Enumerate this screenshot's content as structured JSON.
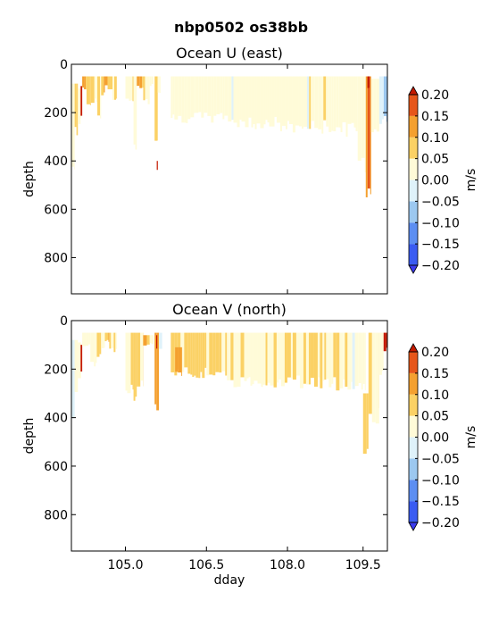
{
  "figure": {
    "suptitle": "nbp0502 os38bb"
  },
  "colors": {
    "neg_extreme": "#3b3bf0",
    "pos_extreme": "#c41a00",
    "frame": "#000000"
  },
  "colormap": {
    "bins": [
      {
        "lo": -0.2,
        "hi": -0.15,
        "color": "#3a5cf2"
      },
      {
        "lo": -0.15,
        "hi": -0.1,
        "color": "#5c8ef2"
      },
      {
        "lo": -0.1,
        "hi": -0.05,
        "color": "#9cc8f0"
      },
      {
        "lo": -0.05,
        "hi": 0.0,
        "color": "#dff2fa"
      },
      {
        "lo": 0.0,
        "hi": 0.05,
        "color": "#fffbd8"
      },
      {
        "lo": 0.05,
        "hi": 0.1,
        "color": "#fbd165"
      },
      {
        "lo": 0.1,
        "hi": 0.15,
        "color": "#f4a030"
      },
      {
        "lo": 0.15,
        "hi": 0.2,
        "color": "#e6561a"
      }
    ]
  },
  "chart_data": [
    {
      "type": "heatmap",
      "title": "Ocean U (east)",
      "xlabel": "",
      "ylabel": "depth",
      "ylim": [
        950,
        0
      ],
      "xlim": [
        104.6,
        110.45
      ],
      "yticks": [
        "0",
        "200",
        "400",
        "600",
        "800"
      ],
      "colorbar": {
        "label": "m/s",
        "ticks": [
          "0.20",
          "0.15",
          "0.10",
          "0.05",
          "0.00",
          "−0.05",
          "−0.10",
          "−0.15",
          "−0.20"
        ],
        "range": [
          -0.2,
          0.2
        ]
      },
      "segments": [
        {
          "x0": 104.6,
          "x1": 104.66,
          "d0": 80,
          "d1": 480,
          "level": 0.03
        },
        {
          "x0": 104.66,
          "x1": 104.72,
          "d0": 80,
          "d1": 310,
          "level": 0.06
        },
        {
          "x0": 104.72,
          "x1": 104.78,
          "d0": 100,
          "d1": 250,
          "level": 0.04
        },
        {
          "x0": 104.77,
          "x1": 104.8,
          "d0": 90,
          "d1": 230,
          "level": 0.2
        },
        {
          "x0": 104.8,
          "x1": 104.9,
          "d0": 50,
          "d1": 110,
          "level": 0.08
        },
        {
          "x0": 104.88,
          "x1": 104.96,
          "d0": 50,
          "d1": 180,
          "level": 0.07
        },
        {
          "x0": 104.96,
          "x1": 105.08,
          "d0": 50,
          "d1": 170,
          "level": 0.06
        },
        {
          "x0": 105.08,
          "x1": 105.15,
          "d0": 50,
          "d1": 230,
          "level": 0.05
        },
        {
          "x0": 105.15,
          "x1": 105.22,
          "d0": 50,
          "d1": 130,
          "level": 0.1
        },
        {
          "x0": 105.22,
          "x1": 105.27,
          "d0": 50,
          "d1": 90,
          "level": 0.12
        },
        {
          "x0": 105.27,
          "x1": 105.36,
          "d0": 50,
          "d1": 110,
          "level": 0.07
        },
        {
          "x0": 105.36,
          "x1": 105.44,
          "d0": 50,
          "d1": 170,
          "level": 0.05
        },
        {
          "x0": 105.6,
          "x1": 105.75,
          "d0": 50,
          "d1": 160,
          "level": 0.04
        },
        {
          "x0": 105.75,
          "x1": 105.81,
          "d0": 50,
          "d1": 360,
          "level": 0.02
        },
        {
          "x0": 105.81,
          "x1": 105.93,
          "d0": 50,
          "d1": 100,
          "level": 0.12
        },
        {
          "x0": 105.93,
          "x1": 106.05,
          "d0": 50,
          "d1": 170,
          "level": 0.06
        },
        {
          "x0": 106.05,
          "x1": 106.12,
          "d0": 50,
          "d1": 90,
          "level": 0.03
        },
        {
          "x0": 106.14,
          "x1": 106.2,
          "d0": 50,
          "d1": 320,
          "level": 0.09
        },
        {
          "x0": 106.18,
          "x1": 106.2,
          "d0": 400,
          "d1": 440,
          "level": 0.2
        },
        {
          "x0": 106.2,
          "x1": 106.25,
          "d0": 50,
          "d1": 120,
          "level": 0.04
        },
        {
          "x0": 106.44,
          "x1": 107.6,
          "d0": 50,
          "d1": 245,
          "level": 0.02
        },
        {
          "x0": 107.6,
          "x1": 108.4,
          "d0": 50,
          "d1": 270,
          "level": 0.03
        },
        {
          "x0": 108.4,
          "x1": 109.0,
          "d0": 50,
          "d1": 290,
          "level": 0.02
        },
        {
          "x0": 109.0,
          "x1": 109.55,
          "d0": 50,
          "d1": 290,
          "level": 0.04
        },
        {
          "x0": 109.55,
          "x1": 109.9,
          "d0": 50,
          "d1": 300,
          "level": 0.03
        },
        {
          "x0": 109.9,
          "x1": 110.05,
          "d0": 50,
          "d1": 460,
          "level": 0.03
        },
        {
          "x0": 110.05,
          "x1": 110.15,
          "d0": 50,
          "d1": 585,
          "level": 0.15
        },
        {
          "x0": 110.08,
          "x1": 110.12,
          "d0": 50,
          "d1": 100,
          "level": 0.2
        },
        {
          "x0": 110.15,
          "x1": 110.3,
          "d0": 60,
          "d1": 300,
          "level": 0.02
        },
        {
          "x0": 110.3,
          "x1": 110.45,
          "d0": 50,
          "d1": 260,
          "level": -0.04
        }
      ]
    },
    {
      "type": "heatmap",
      "title": "Ocean V (north)",
      "xlabel": "dday",
      "ylabel": "depth",
      "ylim": [
        950,
        0
      ],
      "xlim": [
        104.6,
        110.45
      ],
      "xticks": [
        {
          "value": 105.6,
          "label": "105.0"
        },
        {
          "value": 107.1,
          "label": "106.5"
        },
        {
          "value": 108.6,
          "label": "108.0"
        },
        {
          "value": 110.0,
          "label": "109.5"
        }
      ],
      "yticks": [
        "0",
        "200",
        "400",
        "600",
        "800"
      ],
      "colorbar": {
        "label": "m/s",
        "ticks": [
          "0.20",
          "0.15",
          "0.10",
          "0.05",
          "0.00",
          "−0.05",
          "−0.10",
          "−0.15",
          "−0.20"
        ],
        "range": [
          -0.2,
          0.2
        ]
      },
      "segments": [
        {
          "x0": 104.6,
          "x1": 104.66,
          "d0": 80,
          "d1": 470,
          "level": -0.03
        },
        {
          "x0": 104.66,
          "x1": 104.72,
          "d0": 80,
          "d1": 300,
          "level": 0.02
        },
        {
          "x0": 104.72,
          "x1": 104.78,
          "d0": 90,
          "d1": 240,
          "level": 0.05
        },
        {
          "x0": 104.77,
          "x1": 104.8,
          "d0": 100,
          "d1": 210,
          "level": 0.2
        },
        {
          "x0": 104.8,
          "x1": 104.95,
          "d0": 50,
          "d1": 110,
          "level": 0.04
        },
        {
          "x0": 104.95,
          "x1": 105.07,
          "d0": 50,
          "d1": 200,
          "level": 0.02
        },
        {
          "x0": 105.07,
          "x1": 105.15,
          "d0": 50,
          "d1": 160,
          "level": 0.06
        },
        {
          "x0": 105.15,
          "x1": 105.22,
          "d0": 50,
          "d1": 120,
          "level": 0.04
        },
        {
          "x0": 105.22,
          "x1": 105.3,
          "d0": 50,
          "d1": 90,
          "level": 0.08
        },
        {
          "x0": 105.3,
          "x1": 105.44,
          "d0": 50,
          "d1": 130,
          "level": 0.06
        },
        {
          "x0": 105.6,
          "x1": 105.75,
          "d0": 50,
          "d1": 300,
          "level": 0.06
        },
        {
          "x0": 105.75,
          "x1": 105.81,
          "d0": 50,
          "d1": 370,
          "level": 0.08
        },
        {
          "x0": 105.81,
          "x1": 105.93,
          "d0": 50,
          "d1": 290,
          "level": 0.05
        },
        {
          "x0": 105.93,
          "x1": 106.05,
          "d0": 60,
          "d1": 110,
          "level": 0.11
        },
        {
          "x0": 106.05,
          "x1": 106.12,
          "d0": 60,
          "d1": 100,
          "level": 0.03
        },
        {
          "x0": 106.14,
          "x1": 106.22,
          "d0": 50,
          "d1": 370,
          "level": 0.12
        },
        {
          "x0": 106.17,
          "x1": 106.19,
          "d0": 60,
          "d1": 130,
          "level": 0.2
        },
        {
          "x0": 106.22,
          "x1": 106.28,
          "d0": 50,
          "d1": 120,
          "level": -0.03
        },
        {
          "x0": 106.44,
          "x1": 107.1,
          "d0": 50,
          "d1": 240,
          "level": 0.07
        },
        {
          "x0": 106.52,
          "x1": 106.65,
          "d0": 110,
          "d1": 230,
          "level": 0.13
        },
        {
          "x0": 107.1,
          "x1": 107.6,
          "d0": 50,
          "d1": 260,
          "level": 0.05
        },
        {
          "x0": 107.6,
          "x1": 108.4,
          "d0": 50,
          "d1": 280,
          "level": 0.04
        },
        {
          "x0": 108.4,
          "x1": 109.2,
          "d0": 50,
          "d1": 280,
          "level": 0.05
        },
        {
          "x0": 109.2,
          "x1": 109.8,
          "d0": 50,
          "d1": 290,
          "level": 0.04
        },
        {
          "x0": 109.8,
          "x1": 110.05,
          "d0": 50,
          "d1": 300,
          "level": 0.02
        },
        {
          "x0": 110.0,
          "x1": 110.1,
          "d0": 300,
          "d1": 580,
          "level": 0.07
        },
        {
          "x0": 110.1,
          "x1": 110.3,
          "d0": 50,
          "d1": 430,
          "level": 0.03
        },
        {
          "x0": 110.3,
          "x1": 110.38,
          "d0": 50,
          "d1": 250,
          "level": 0.02
        },
        {
          "x0": 110.38,
          "x1": 110.45,
          "d0": 50,
          "d1": 130,
          "level": 0.2
        }
      ]
    }
  ]
}
